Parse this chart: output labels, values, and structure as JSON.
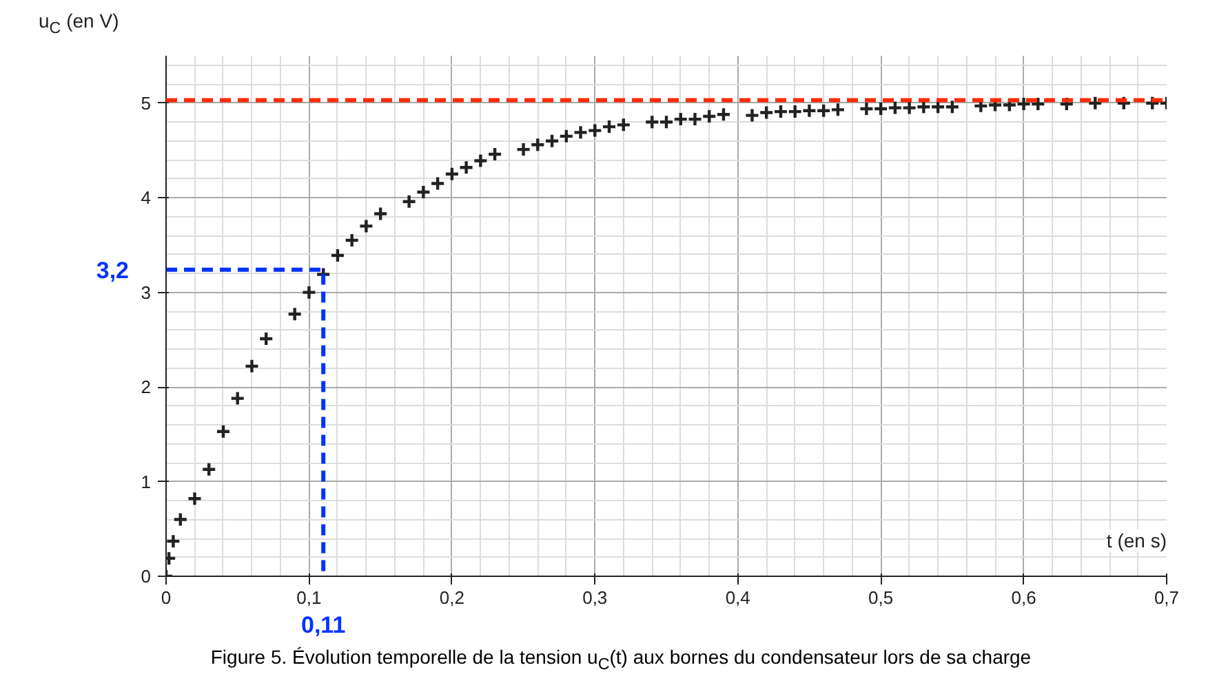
{
  "chart_data": {
    "type": "scatter",
    "title": "Figure 5. Évolution temporelle de la tension u$_{C}$(t) aux bornes du condensateur lors de sa charge",
    "xlabel": "t (en s)",
    "ylabel": "u$_{C}$ (en V)",
    "xlim": [
      0,
      0.7
    ],
    "ylim": [
      0,
      5.5
    ],
    "xticks": [
      0,
      {
        "value": 0.1,
        "label": "0,1"
      },
      {
        "value": 0.2,
        "label": "0,2"
      },
      {
        "value": 0.3,
        "label": "0,3"
      },
      {
        "value": 0.4,
        "label": "0,4"
      },
      {
        "value": 0.5,
        "label": "0,5"
      },
      {
        "value": 0.6,
        "label": "0,6"
      },
      {
        "value": 0.7,
        "label": "0,7"
      }
    ],
    "yticks": [
      0,
      1,
      2,
      3,
      4,
      5
    ],
    "grid": true,
    "marker": "cross",
    "series": [
      {
        "color": "#222222",
        "x": [
          0,
          0.002,
          0.005,
          0.01,
          0.02,
          0.03,
          0.04,
          0.05,
          0.06,
          0.07,
          0.09,
          0.1,
          0.11,
          0.12,
          0.13,
          0.14,
          0.15,
          0.17,
          0.18,
          0.19,
          0.2,
          0.21,
          0.22,
          0.23,
          0.25,
          0.26,
          0.27,
          0.28,
          0.29,
          0.3,
          0.31,
          0.32,
          0.34,
          0.35,
          0.36,
          0.37,
          0.38,
          0.39,
          0.41,
          0.42,
          0.43,
          0.44,
          0.45,
          0.46,
          0.47,
          0.49,
          0.5,
          0.51,
          0.52,
          0.53,
          0.54,
          0.55,
          0.57,
          0.58,
          0.59,
          0.6,
          0.61,
          0.63,
          0.65,
          0.67,
          0.69,
          0.7
        ],
        "values": [
          0,
          0.19,
          0.37,
          0.6,
          0.82,
          1.13,
          1.53,
          1.88,
          2.22,
          2.51,
          2.77,
          3.0,
          3.19,
          3.39,
          3.55,
          3.7,
          3.83,
          3.96,
          4.06,
          4.15,
          4.25,
          4.32,
          4.39,
          4.46,
          4.51,
          4.56,
          4.6,
          4.65,
          4.69,
          4.71,
          4.75,
          4.77,
          4.8,
          4.8,
          4.83,
          4.83,
          4.86,
          4.88,
          4.87,
          4.9,
          4.91,
          4.91,
          4.92,
          4.92,
          4.93,
          4.94,
          4.94,
          4.95,
          4.95,
          4.96,
          4.96,
          4.96,
          4.97,
          4.98,
          4.98,
          4.99,
          4.99,
          4.99,
          5.0,
          5.0,
          5.0,
          5.0
        ]
      },
      {
        "type": "line",
        "color": "#0033ff",
        "line_style": "dashed",
        "marker": "none",
        "x": [
          0,
          0.11,
          0.11
        ],
        "values": [
          3.24,
          3.24,
          0
        ]
      }
    ],
    "ref_lines": [
      {
        "axis": "y",
        "value": 5.03,
        "color": "#ff2a00",
        "line_style": "dashed"
      }
    ],
    "annotations": [
      "3,2",
      "0,11"
    ]
  }
}
